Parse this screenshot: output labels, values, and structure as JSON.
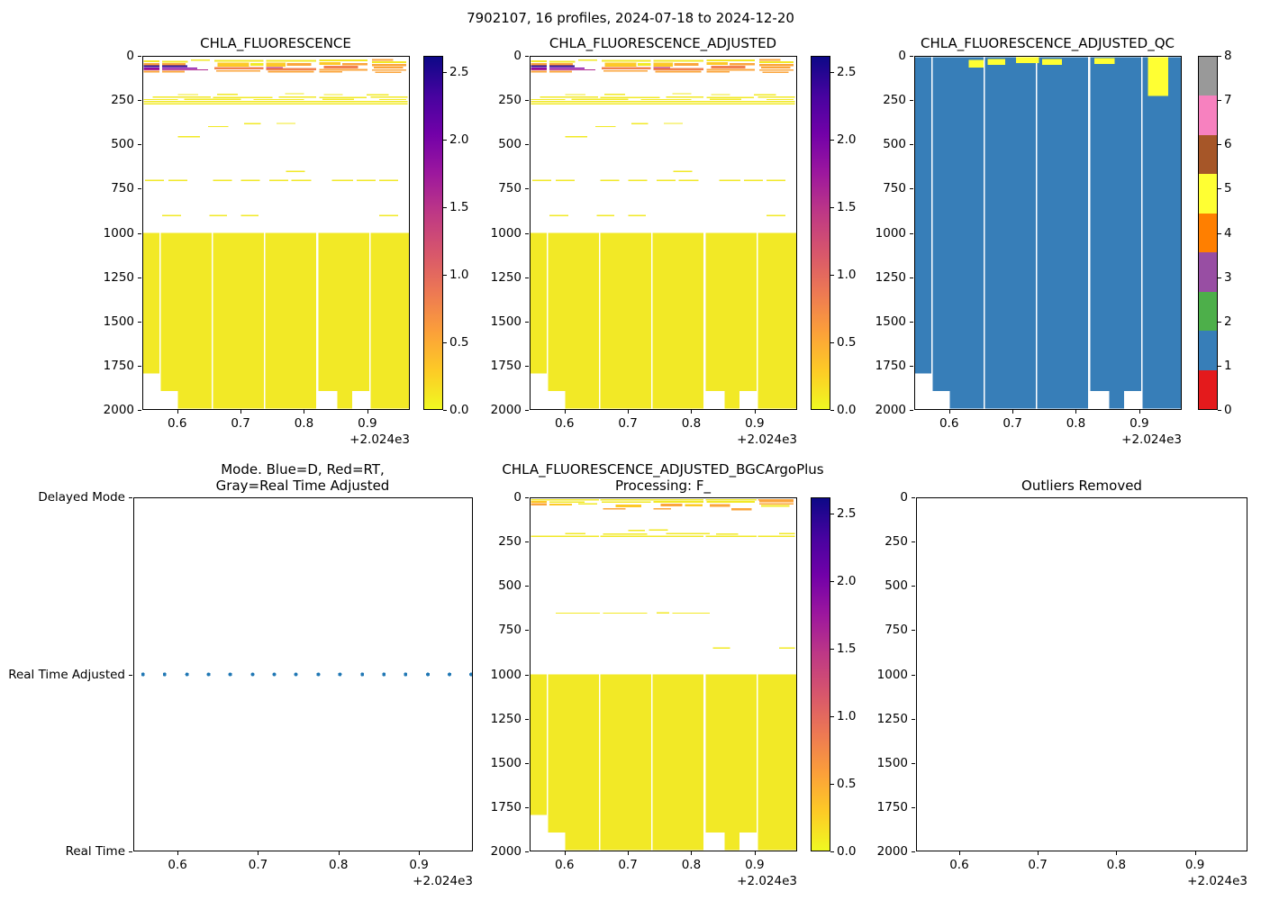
{
  "figure": {
    "suptitle": "7902107, 16 profiles, 2024-07-18 to 2024-12-20"
  },
  "chart_data": {
    "type": "heatmap",
    "x_axis": {
      "lim": [
        2024.545,
        2024.967
      ],
      "ticks": [
        2024.6,
        2024.7,
        2024.8,
        2024.9
      ],
      "tick_labels": [
        "0.6",
        "0.7",
        "0.8",
        "0.9"
      ],
      "offset_label": "+2.024e3"
    },
    "depth_axis": {
      "lim": [
        0,
        2000
      ],
      "ticks": [
        0,
        250,
        500,
        750,
        1000,
        1250,
        1500,
        1750,
        2000
      ],
      "tick_labels": [
        "0",
        "250",
        "500",
        "750",
        "1000",
        "1250",
        "1500",
        "1750",
        "2000"
      ]
    },
    "plasma_colorbar": {
      "vmin": 0,
      "vmax": 2.62,
      "ticks": [
        2.5,
        2.0,
        1.5,
        1.0,
        0.5,
        0.0
      ],
      "tick_labels": [
        "2.5",
        "2.0",
        "1.5",
        "1.0",
        "0.5",
        "0.0"
      ],
      "gradient_top_to_bottom": [
        "#0d0887",
        "#46039f",
        "#7201a8",
        "#9c179e",
        "#bd3786",
        "#d8576b",
        "#ed7953",
        "#fb9f3a",
        "#fdca26",
        "#f0f921"
      ]
    },
    "qc_colorbar": {
      "tick_labels_bottom_to_top": [
        "0",
        "1",
        "2",
        "3",
        "4",
        "5",
        "6",
        "7",
        "8"
      ],
      "colors_bottom_to_top": [
        "#e41a1c",
        "#377eb8",
        "#4daf4a",
        "#984ea3",
        "#ff7f00",
        "#ffff33",
        "#a65628",
        "#f781bf",
        "#999999"
      ]
    },
    "palette": {
      "y": "#f2e926",
      "g": "#fdc827",
      "o": "#fba53c",
      "d": "#f08050",
      "m": "#b02a90",
      "p": "#8606a6",
      "n": "#2b0a94",
      "qb": "#377eb8",
      "qy": "#ffff33",
      "dot": "#1f77b4"
    },
    "layers": {
      "surface": [
        [
          2024.546,
          2024.571,
          18,
          30,
          "y"
        ],
        [
          2024.546,
          2024.571,
          34,
          46,
          "o"
        ],
        [
          2024.546,
          2024.571,
          48,
          58,
          "n"
        ],
        [
          2024.546,
          2024.571,
          59,
          67,
          "p"
        ],
        [
          2024.546,
          2024.571,
          68,
          74,
          "m"
        ],
        [
          2024.546,
          2024.571,
          77,
          88,
          "o"
        ],
        [
          2024.575,
          2024.616,
          22,
          31,
          "y"
        ],
        [
          2024.621,
          2024.651,
          14,
          22,
          "y"
        ],
        [
          2024.575,
          2024.612,
          34,
          46,
          "o"
        ],
        [
          2024.575,
          2024.615,
          48,
          58,
          "n"
        ],
        [
          2024.575,
          2024.631,
          60,
          68,
          "p"
        ],
        [
          2024.575,
          2024.648,
          69,
          74,
          "m"
        ],
        [
          2024.575,
          2024.611,
          78,
          88,
          "o"
        ],
        [
          2024.658,
          2024.736,
          17,
          27,
          "y"
        ],
        [
          2024.663,
          2024.713,
          31,
          55,
          "g"
        ],
        [
          2024.715,
          2024.736,
          35,
          49,
          "y"
        ],
        [
          2024.658,
          2024.736,
          57,
          70,
          "d"
        ],
        [
          2024.661,
          2024.731,
          74,
          84,
          "o"
        ],
        [
          2024.74,
          2024.82,
          16,
          27,
          "y"
        ],
        [
          2024.74,
          2024.771,
          31,
          54,
          "g"
        ],
        [
          2024.773,
          2024.812,
          33,
          50,
          "o"
        ],
        [
          2024.74,
          2024.767,
          56,
          62,
          "m"
        ],
        [
          2024.74,
          2024.82,
          62,
          74,
          "d"
        ],
        [
          2024.743,
          2024.816,
          78,
          88,
          "o"
        ],
        [
          2024.825,
          2024.901,
          14,
          25,
          "y"
        ],
        [
          2024.825,
          2024.858,
          29,
          44,
          "g"
        ],
        [
          2024.861,
          2024.901,
          33,
          48,
          "o"
        ],
        [
          2024.832,
          2024.886,
          50,
          64,
          "d"
        ],
        [
          2024.825,
          2024.901,
          67,
          77,
          "o"
        ],
        [
          2024.825,
          2024.861,
          80,
          88,
          "o"
        ],
        [
          2024.908,
          2024.942,
          12,
          21,
          "o"
        ],
        [
          2024.908,
          2024.963,
          25,
          35,
          "y"
        ],
        [
          2024.908,
          2024.963,
          39,
          51,
          "o"
        ],
        [
          2024.911,
          2024.958,
          55,
          65,
          "o"
        ],
        [
          2024.908,
          2024.963,
          69,
          79,
          "o"
        ],
        [
          2024.913,
          2024.955,
          83,
          91,
          "o"
        ]
      ],
      "midlines": [
        [
          2024.6,
          2024.632,
          210,
          217
        ],
        [
          2024.662,
          2024.695,
          208,
          215
        ],
        [
          2024.77,
          2024.8,
          205,
          212
        ],
        [
          2024.832,
          2024.862,
          210,
          217
        ],
        [
          2024.9,
          2024.935,
          212,
          219
        ],
        [
          2024.56,
          2024.652,
          224,
          231
        ],
        [
          2024.656,
          2024.75,
          226,
          233
        ],
        [
          2024.76,
          2024.82,
          224,
          231
        ],
        [
          2024.825,
          2024.9,
          226,
          233
        ],
        [
          2024.906,
          2024.965,
          224,
          231
        ],
        [
          2024.546,
          2024.6,
          238,
          245
        ],
        [
          2024.61,
          2024.7,
          236,
          243
        ],
        [
          2024.72,
          2024.8,
          238,
          245
        ],
        [
          2024.83,
          2024.88,
          236,
          243
        ],
        [
          2024.92,
          2024.963,
          238,
          245
        ],
        [
          2024.546,
          2024.965,
          250,
          257
        ],
        [
          2024.546,
          2024.965,
          263,
          270
        ]
      ],
      "dashes": [
        [
          2024.705,
          2024.732,
          376,
          383
        ],
        [
          2024.757,
          2024.787,
          374,
          381
        ],
        [
          2024.648,
          2024.68,
          392,
          399
        ],
        [
          2024.6,
          2024.635,
          449,
          456
        ],
        [
          2024.772,
          2024.802,
          646,
          653
        ],
        [
          2024.548,
          2024.578,
          698,
          705
        ],
        [
          2024.585,
          2024.615,
          698,
          705
        ],
        [
          2024.656,
          2024.686,
          698,
          705
        ],
        [
          2024.7,
          2024.73,
          698,
          705
        ],
        [
          2024.745,
          2024.775,
          698,
          705
        ],
        [
          2024.78,
          2024.812,
          698,
          705
        ],
        [
          2024.845,
          2024.878,
          698,
          705
        ],
        [
          2024.884,
          2024.914,
          698,
          705
        ],
        [
          2024.92,
          2024.95,
          698,
          705
        ],
        [
          2024.575,
          2024.605,
          897,
          904
        ],
        [
          2024.65,
          2024.678,
          897,
          904
        ],
        [
          2024.7,
          2024.728,
          897,
          904
        ],
        [
          2024.92,
          2024.95,
          897,
          904
        ]
      ],
      "deepblock": [
        [
          2024.545,
          2024.571,
          1000,
          1800
        ],
        [
          2024.573,
          2024.654,
          1000,
          1900
        ],
        [
          2024.6,
          2024.654,
          1900,
          2000
        ],
        [
          2024.656,
          2024.737,
          1000,
          2000
        ],
        [
          2024.739,
          2024.82,
          1000,
          2000
        ],
        [
          2024.823,
          2024.904,
          1000,
          1900
        ],
        [
          2024.853,
          2024.877,
          1900,
          2000
        ],
        [
          2024.906,
          2024.967,
          1000,
          2000
        ]
      ],
      "qccols": [
        [
          2024.545,
          2024.571,
          0,
          1800,
          "qb"
        ],
        [
          2024.573,
          2024.654,
          0,
          1900,
          "qb"
        ],
        [
          2024.6,
          2024.654,
          1900,
          2000,
          "qb"
        ],
        [
          2024.656,
          2024.737,
          0,
          2000,
          "qb"
        ],
        [
          2024.739,
          2024.82,
          0,
          2000,
          "qb"
        ],
        [
          2024.823,
          2024.904,
          0,
          1900,
          "qb"
        ],
        [
          2024.853,
          2024.877,
          1900,
          2000,
          "qb"
        ],
        [
          2024.906,
          2024.967,
          0,
          2000,
          "qb"
        ]
      ],
      "qcpatches": [
        [
          2024.63,
          2024.654,
          15,
          60,
          "qy"
        ],
        [
          2024.66,
          2024.688,
          10,
          45,
          "qy"
        ],
        [
          2024.705,
          2024.742,
          0,
          35,
          "qy"
        ],
        [
          2024.747,
          2024.778,
          10,
          45,
          "qy"
        ],
        [
          2024.83,
          2024.862,
          5,
          40,
          "qy"
        ],
        [
          2024.915,
          2024.947,
          0,
          220,
          "qy"
        ]
      ],
      "p5surface": [
        [
          2024.546,
          2024.654,
          3,
          11,
          "y"
        ],
        [
          2024.656,
          2024.82,
          3,
          11,
          "y"
        ],
        [
          2024.823,
          2024.904,
          3,
          11,
          "y"
        ],
        [
          2024.906,
          2024.963,
          3,
          10,
          "o"
        ],
        [
          2024.546,
          2024.571,
          14,
          24,
          "g"
        ],
        [
          2024.546,
          2024.571,
          27,
          40,
          "o"
        ],
        [
          2024.575,
          2024.631,
          15,
          25,
          "y"
        ],
        [
          2024.575,
          2024.611,
          29,
          40,
          "g"
        ],
        [
          2024.621,
          2024.651,
          27,
          35,
          "y"
        ],
        [
          2024.658,
          2024.736,
          15,
          25,
          "y"
        ],
        [
          2024.68,
          2024.721,
          33,
          50,
          "g"
        ],
        [
          2024.66,
          2024.696,
          55,
          63,
          "o"
        ],
        [
          2024.74,
          2024.82,
          13,
          25,
          "y"
        ],
        [
          2024.752,
          2024.786,
          29,
          45,
          "o"
        ],
        [
          2024.79,
          2024.818,
          31,
          44,
          "g"
        ],
        [
          2024.74,
          2024.768,
          55,
          63,
          "o"
        ],
        [
          2024.825,
          2024.901,
          13,
          25,
          "y"
        ],
        [
          2024.83,
          2024.862,
          31,
          47,
          "o"
        ],
        [
          2024.864,
          2024.896,
          54,
          68,
          "o"
        ],
        [
          2024.908,
          2024.963,
          12,
          22,
          "o"
        ],
        [
          2024.908,
          2024.963,
          26,
          34,
          "o"
        ],
        [
          2024.911,
          2024.956,
          38,
          46,
          "y"
        ]
      ],
      "p5lines": [
        [
          2024.7,
          2024.727,
          178,
          185
        ],
        [
          2024.733,
          2024.763,
          176,
          183
        ],
        [
          2024.6,
          2024.632,
          196,
          203
        ],
        [
          2024.66,
          2024.73,
          198,
          205
        ],
        [
          2024.76,
          2024.83,
          196,
          203
        ],
        [
          2024.84,
          2024.875,
          198,
          205
        ],
        [
          2024.94,
          2024.965,
          196,
          203
        ],
        [
          2024.546,
          2024.654,
          211,
          218
        ],
        [
          2024.656,
          2024.82,
          212,
          219
        ],
        [
          2024.823,
          2024.904,
          211,
          218
        ],
        [
          2024.906,
          2024.965,
          211,
          218
        ],
        [
          2024.585,
          2024.655,
          648,
          655
        ],
        [
          2024.66,
          2024.73,
          648,
          655
        ],
        [
          2024.745,
          2024.765,
          646,
          653
        ],
        [
          2024.77,
          2024.83,
          648,
          655
        ],
        [
          2024.835,
          2024.862,
          846,
          853
        ],
        [
          2024.94,
          2024.965,
          846,
          853
        ]
      ]
    },
    "panels": [
      {
        "key": "p1",
        "title": "CHLA_FLUORESCENCE",
        "layers": [
          "surface",
          "midlines",
          "dashes",
          "deepblock"
        ],
        "colorbar": "plasma"
      },
      {
        "key": "p2",
        "title": "CHLA_FLUORESCENCE_ADJUSTED",
        "layers": [
          "surface",
          "midlines",
          "dashes",
          "deepblock"
        ],
        "colorbar": "plasma"
      },
      {
        "key": "p3",
        "title": "CHLA_FLUORESCENCE_ADJUSTED_QC",
        "layers": [
          "qccols",
          "qcpatches"
        ],
        "colorbar": "qc"
      },
      {
        "key": "p4",
        "title_lines": [
          "Mode. Blue=D, Red=RT,",
          "Gray=Real Time Adjusted"
        ],
        "y_category_labels": [
          "Delayed Mode",
          "Real Time Adjusted",
          "Real Time"
        ],
        "dots_y_category": "Real Time Adjusted",
        "dots_x": [
          2024.556,
          2024.583,
          2024.611,
          2024.638,
          2024.665,
          2024.693,
          2024.72,
          2024.747,
          2024.775,
          2024.802,
          2024.83,
          2024.857,
          2024.884,
          2024.912,
          2024.939,
          2024.966
        ]
      },
      {
        "key": "p5",
        "title_lines": [
          "CHLA_FLUORESCENCE_ADJUSTED_BGCArgoPlus",
          "Processing: F_"
        ],
        "layers": [
          "p5surface",
          "p5lines",
          "deepblock"
        ],
        "colorbar": "plasma"
      },
      {
        "key": "p6",
        "title": "Outliers Removed",
        "layers": []
      }
    ]
  }
}
